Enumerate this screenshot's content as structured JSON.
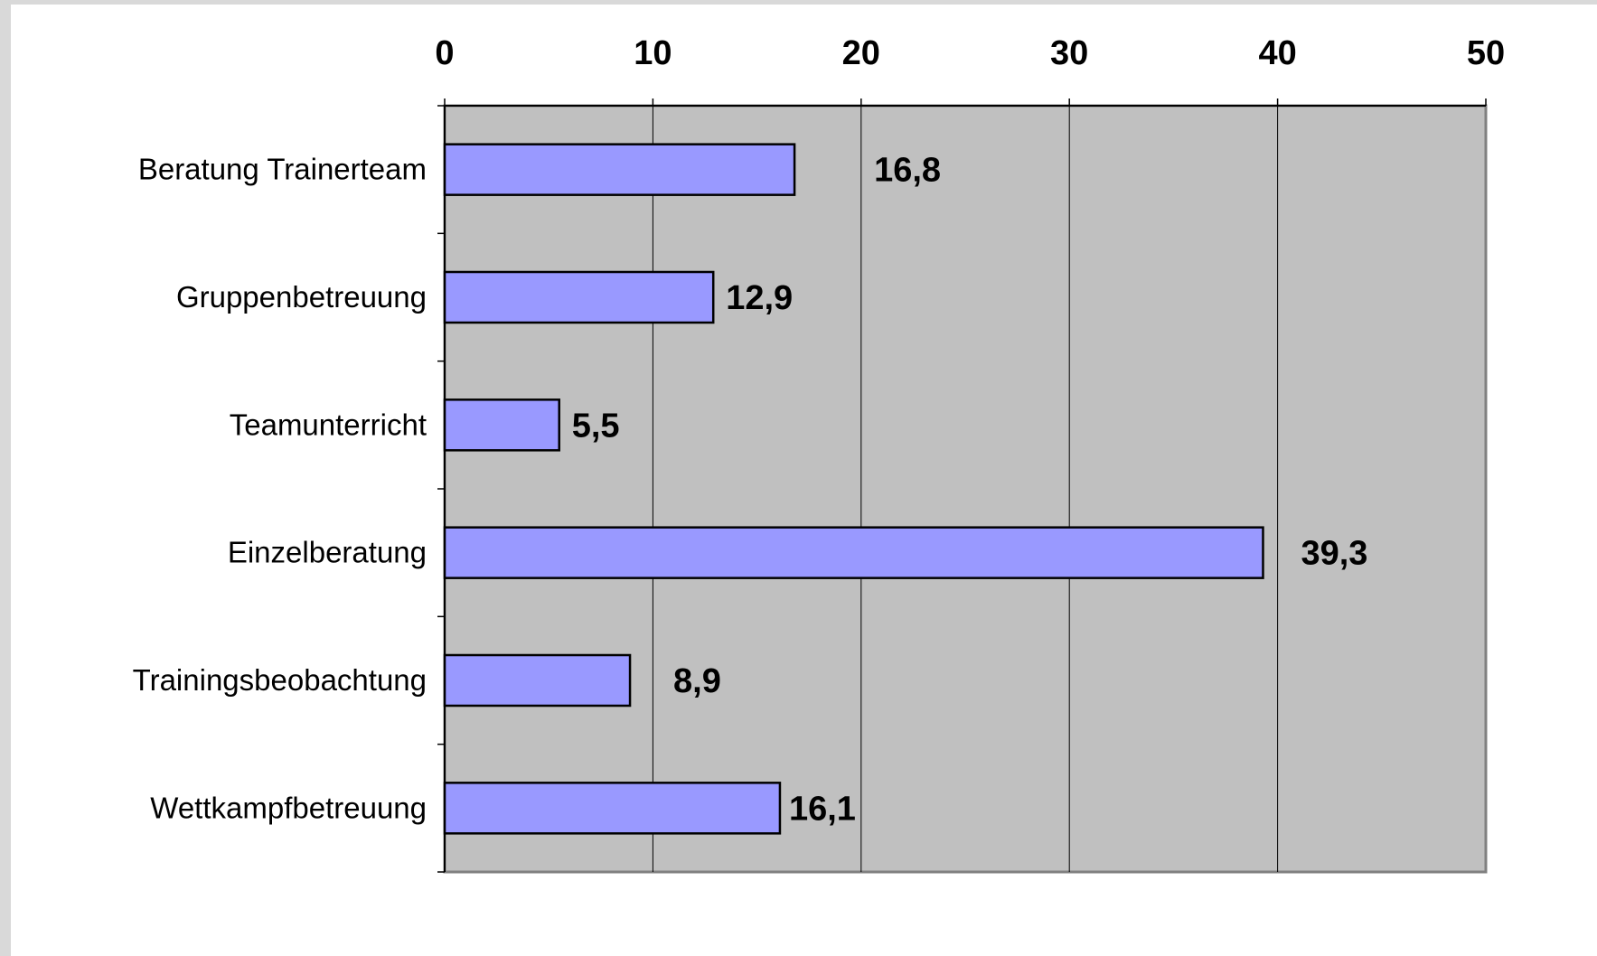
{
  "chart_data": {
    "type": "bar",
    "orientation": "horizontal",
    "categories": [
      "Beratung Trainerteam",
      "Gruppenbetreuung",
      "Teamunterricht",
      "Einzelberatung",
      "Trainingsbeobachtung",
      "Wettkampfbetreuung"
    ],
    "values": [
      16.8,
      12.9,
      5.5,
      39.3,
      8.9,
      16.1
    ],
    "data_labels": [
      "16,8",
      "12,9",
      "5,5",
      "39,3",
      "8,9",
      "16,1"
    ],
    "xticks": [
      "0",
      "10",
      "20",
      "30",
      "40",
      "50"
    ],
    "xlim": [
      0,
      50
    ],
    "x_axis_position": "top",
    "grid": true,
    "title": "",
    "xlabel": "",
    "ylabel": "",
    "colors": {
      "bar_fill": "#9999ff",
      "bar_stroke": "#000000",
      "plot_background": "#c0c0c0",
      "gridline": "#000000"
    }
  }
}
